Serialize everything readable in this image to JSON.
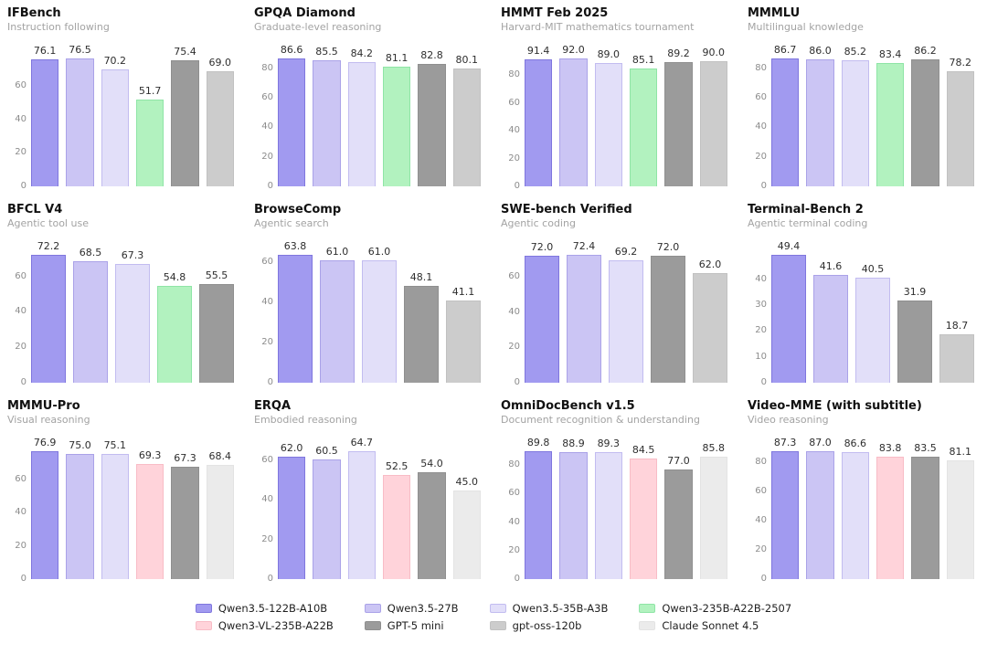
{
  "page": {
    "background": "#ffffff",
    "text_color": "#111111",
    "subtitle_color": "#a3a3a3",
    "tick_color": "#8c8c8c"
  },
  "models": [
    {
      "name": "Qwen3.5-122B-A10B",
      "fill": "#a19af0",
      "edge": "#7f76de"
    },
    {
      "name": "Qwen3.5-27B",
      "fill": "#cbc5f4",
      "edge": "#aaa2e8"
    },
    {
      "name": "Qwen3.5-35B-A3B",
      "fill": "#e2dff9",
      "edge": "#c2bcf0"
    },
    {
      "name": "Qwen3-235B-A22B-2507",
      "fill": "#b2f2bf",
      "edge": "#8fe5a6"
    },
    {
      "name": "Qwen3-VL-235B-A22B",
      "fill": "#ffd3da",
      "edge": "#f8bcc6"
    },
    {
      "name": "GPT-5 mini",
      "fill": "#9b9b9b",
      "edge": "#8f8f8f"
    },
    {
      "name": "gpt-oss-120b",
      "fill": "#cccccc",
      "edge": "#c1c1c1"
    },
    {
      "name": "Claude Sonnet 4.5",
      "fill": "#ebebeb",
      "edge": "#e3e3e3"
    }
  ],
  "legend": {
    "order": [
      0,
      1,
      2,
      3,
      4,
      5,
      6,
      7
    ]
  },
  "chart_data": [
    {
      "type": "bar",
      "title": "IFBench",
      "subtitle": "Instruction following",
      "yticks": [
        0,
        20,
        40,
        60
      ],
      "series": [
        {
          "model": 0,
          "name": "Qwen3.5-122B-A10B",
          "value": 76.1
        },
        {
          "model": 1,
          "name": "Qwen3.5-27B",
          "value": 76.5
        },
        {
          "model": 2,
          "name": "Qwen3.5-35B-A3B",
          "value": 70.2
        },
        {
          "model": 3,
          "name": "Qwen3-235B-A22B-2507",
          "value": 51.7
        },
        {
          "model": 5,
          "name": "GPT-5 mini",
          "value": 75.4
        },
        {
          "model": 6,
          "name": "gpt-oss-120b",
          "value": 69.0
        }
      ]
    },
    {
      "type": "bar",
      "title": "GPQA Diamond",
      "subtitle": "Graduate-level reasoning",
      "yticks": [
        0,
        20,
        40,
        60,
        80
      ],
      "series": [
        {
          "model": 0,
          "name": "Qwen3.5-122B-A10B",
          "value": 86.6
        },
        {
          "model": 1,
          "name": "Qwen3.5-27B",
          "value": 85.5
        },
        {
          "model": 2,
          "name": "Qwen3.5-35B-A3B",
          "value": 84.2
        },
        {
          "model": 3,
          "name": "Qwen3-235B-A22B-2507",
          "value": 81.1
        },
        {
          "model": 5,
          "name": "GPT-5 mini",
          "value": 82.8
        },
        {
          "model": 6,
          "name": "gpt-oss-120b",
          "value": 80.1
        }
      ]
    },
    {
      "type": "bar",
      "title": "HMMT Feb 2025",
      "subtitle": "Harvard-MIT mathematics tournament",
      "yticks": [
        0,
        20,
        40,
        60,
        80
      ],
      "series": [
        {
          "model": 0,
          "name": "Qwen3.5-122B-A10B",
          "value": 91.4
        },
        {
          "model": 1,
          "name": "Qwen3.5-27B",
          "value": 92.0
        },
        {
          "model": 2,
          "name": "Qwen3.5-35B-A3B",
          "value": 89.0
        },
        {
          "model": 3,
          "name": "Qwen3-235B-A22B-2507",
          "value": 85.1
        },
        {
          "model": 5,
          "name": "GPT-5 mini",
          "value": 89.2
        },
        {
          "model": 6,
          "name": "gpt-oss-120b",
          "value": 90.0
        }
      ]
    },
    {
      "type": "bar",
      "title": "MMMLU",
      "subtitle": "Multilingual knowledge",
      "yticks": [
        0,
        20,
        40,
        60,
        80
      ],
      "series": [
        {
          "model": 0,
          "name": "Qwen3.5-122B-A10B",
          "value": 86.7
        },
        {
          "model": 1,
          "name": "Qwen3.5-27B",
          "value": 86.0
        },
        {
          "model": 2,
          "name": "Qwen3.5-35B-A3B",
          "value": 85.2
        },
        {
          "model": 3,
          "name": "Qwen3-235B-A22B-2507",
          "value": 83.4
        },
        {
          "model": 5,
          "name": "GPT-5 mini",
          "value": 86.2
        },
        {
          "model": 6,
          "name": "gpt-oss-120b",
          "value": 78.2
        }
      ]
    },
    {
      "type": "bar",
      "title": "BFCL V4",
      "subtitle": "Agentic tool use",
      "yticks": [
        0,
        20,
        40,
        60
      ],
      "series": [
        {
          "model": 0,
          "name": "Qwen3.5-122B-A10B",
          "value": 72.2
        },
        {
          "model": 1,
          "name": "Qwen3.5-27B",
          "value": 68.5
        },
        {
          "model": 2,
          "name": "Qwen3.5-35B-A3B",
          "value": 67.3
        },
        {
          "model": 3,
          "name": "Qwen3-235B-A22B-2507",
          "value": 54.8
        },
        {
          "model": 5,
          "name": "GPT-5 mini",
          "value": 55.5
        }
      ]
    },
    {
      "type": "bar",
      "title": "BrowseComp",
      "subtitle": "Agentic search",
      "yticks": [
        0,
        20,
        40,
        60
      ],
      "series": [
        {
          "model": 0,
          "name": "Qwen3.5-122B-A10B",
          "value": 63.8
        },
        {
          "model": 1,
          "name": "Qwen3.5-27B",
          "value": 61.0
        },
        {
          "model": 2,
          "name": "Qwen3.5-35B-A3B",
          "value": 61.0
        },
        {
          "model": 5,
          "name": "GPT-5 mini",
          "value": 48.1
        },
        {
          "model": 6,
          "name": "gpt-oss-120b",
          "value": 41.1
        }
      ]
    },
    {
      "type": "bar",
      "title": "SWE-bench Verified",
      "subtitle": "Agentic coding",
      "yticks": [
        0,
        20,
        40,
        60
      ],
      "series": [
        {
          "model": 0,
          "name": "Qwen3.5-122B-A10B",
          "value": 72.0
        },
        {
          "model": 1,
          "name": "Qwen3.5-27B",
          "value": 72.4
        },
        {
          "model": 2,
          "name": "Qwen3.5-35B-A3B",
          "value": 69.2
        },
        {
          "model": 5,
          "name": "GPT-5 mini",
          "value": 72.0
        },
        {
          "model": 6,
          "name": "gpt-oss-120b",
          "value": 62.0
        }
      ]
    },
    {
      "type": "bar",
      "title": "Terminal-Bench 2",
      "subtitle": "Agentic terminal coding",
      "yticks": [
        0,
        10,
        20,
        30,
        40
      ],
      "series": [
        {
          "model": 0,
          "name": "Qwen3.5-122B-A10B",
          "value": 49.4
        },
        {
          "model": 1,
          "name": "Qwen3.5-27B",
          "value": 41.6
        },
        {
          "model": 2,
          "name": "Qwen3.5-35B-A3B",
          "value": 40.5
        },
        {
          "model": 5,
          "name": "GPT-5 mini",
          "value": 31.9
        },
        {
          "model": 6,
          "name": "gpt-oss-120b",
          "value": 18.7
        }
      ]
    },
    {
      "type": "bar",
      "title": "MMMU-Pro",
      "subtitle": "Visual reasoning",
      "yticks": [
        0,
        20,
        40,
        60
      ],
      "series": [
        {
          "model": 0,
          "name": "Qwen3.5-122B-A10B",
          "value": 76.9
        },
        {
          "model": 1,
          "name": "Qwen3.5-27B",
          "value": 75.0
        },
        {
          "model": 2,
          "name": "Qwen3.5-35B-A3B",
          "value": 75.1
        },
        {
          "model": 4,
          "name": "Qwen3-VL-235B-A22B",
          "value": 69.3
        },
        {
          "model": 5,
          "name": "GPT-5 mini",
          "value": 67.3
        },
        {
          "model": 7,
          "name": "Claude Sonnet 4.5",
          "value": 68.4
        }
      ]
    },
    {
      "type": "bar",
      "title": "ERQA",
      "subtitle": "Embodied reasoning",
      "yticks": [
        0,
        20,
        40,
        60
      ],
      "series": [
        {
          "model": 0,
          "name": "Qwen3.5-122B-A10B",
          "value": 62.0
        },
        {
          "model": 1,
          "name": "Qwen3.5-27B",
          "value": 60.5
        },
        {
          "model": 2,
          "name": "Qwen3.5-35B-A3B",
          "value": 64.7
        },
        {
          "model": 4,
          "name": "Qwen3-VL-235B-A22B",
          "value": 52.5
        },
        {
          "model": 5,
          "name": "GPT-5 mini",
          "value": 54.0
        },
        {
          "model": 7,
          "name": "Claude Sonnet 4.5",
          "value": 45.0
        }
      ]
    },
    {
      "type": "bar",
      "title": "OmniDocBench v1.5",
      "subtitle": "Document recognition & understanding",
      "yticks": [
        0,
        20,
        40,
        60,
        80
      ],
      "series": [
        {
          "model": 0,
          "name": "Qwen3.5-122B-A10B",
          "value": 89.8
        },
        {
          "model": 1,
          "name": "Qwen3.5-27B",
          "value": 88.9
        },
        {
          "model": 2,
          "name": "Qwen3.5-35B-A3B",
          "value": 89.3
        },
        {
          "model": 4,
          "name": "Qwen3-VL-235B-A22B",
          "value": 84.5
        },
        {
          "model": 5,
          "name": "GPT-5 mini",
          "value": 77.0
        },
        {
          "model": 7,
          "name": "Claude Sonnet 4.5",
          "value": 85.8
        }
      ]
    },
    {
      "type": "bar",
      "title": "Video-MME (with subtitle)",
      "subtitle": "Video reasoning",
      "yticks": [
        0,
        20,
        40,
        60,
        80
      ],
      "series": [
        {
          "model": 0,
          "name": "Qwen3.5-122B-A10B",
          "value": 87.3
        },
        {
          "model": 1,
          "name": "Qwen3.5-27B",
          "value": 87.0
        },
        {
          "model": 2,
          "name": "Qwen3.5-35B-A3B",
          "value": 86.6
        },
        {
          "model": 4,
          "name": "Qwen3-VL-235B-A22B",
          "value": 83.8
        },
        {
          "model": 5,
          "name": "GPT-5 mini",
          "value": 83.5
        },
        {
          "model": 7,
          "name": "Claude Sonnet 4.5",
          "value": 81.1
        }
      ]
    }
  ]
}
